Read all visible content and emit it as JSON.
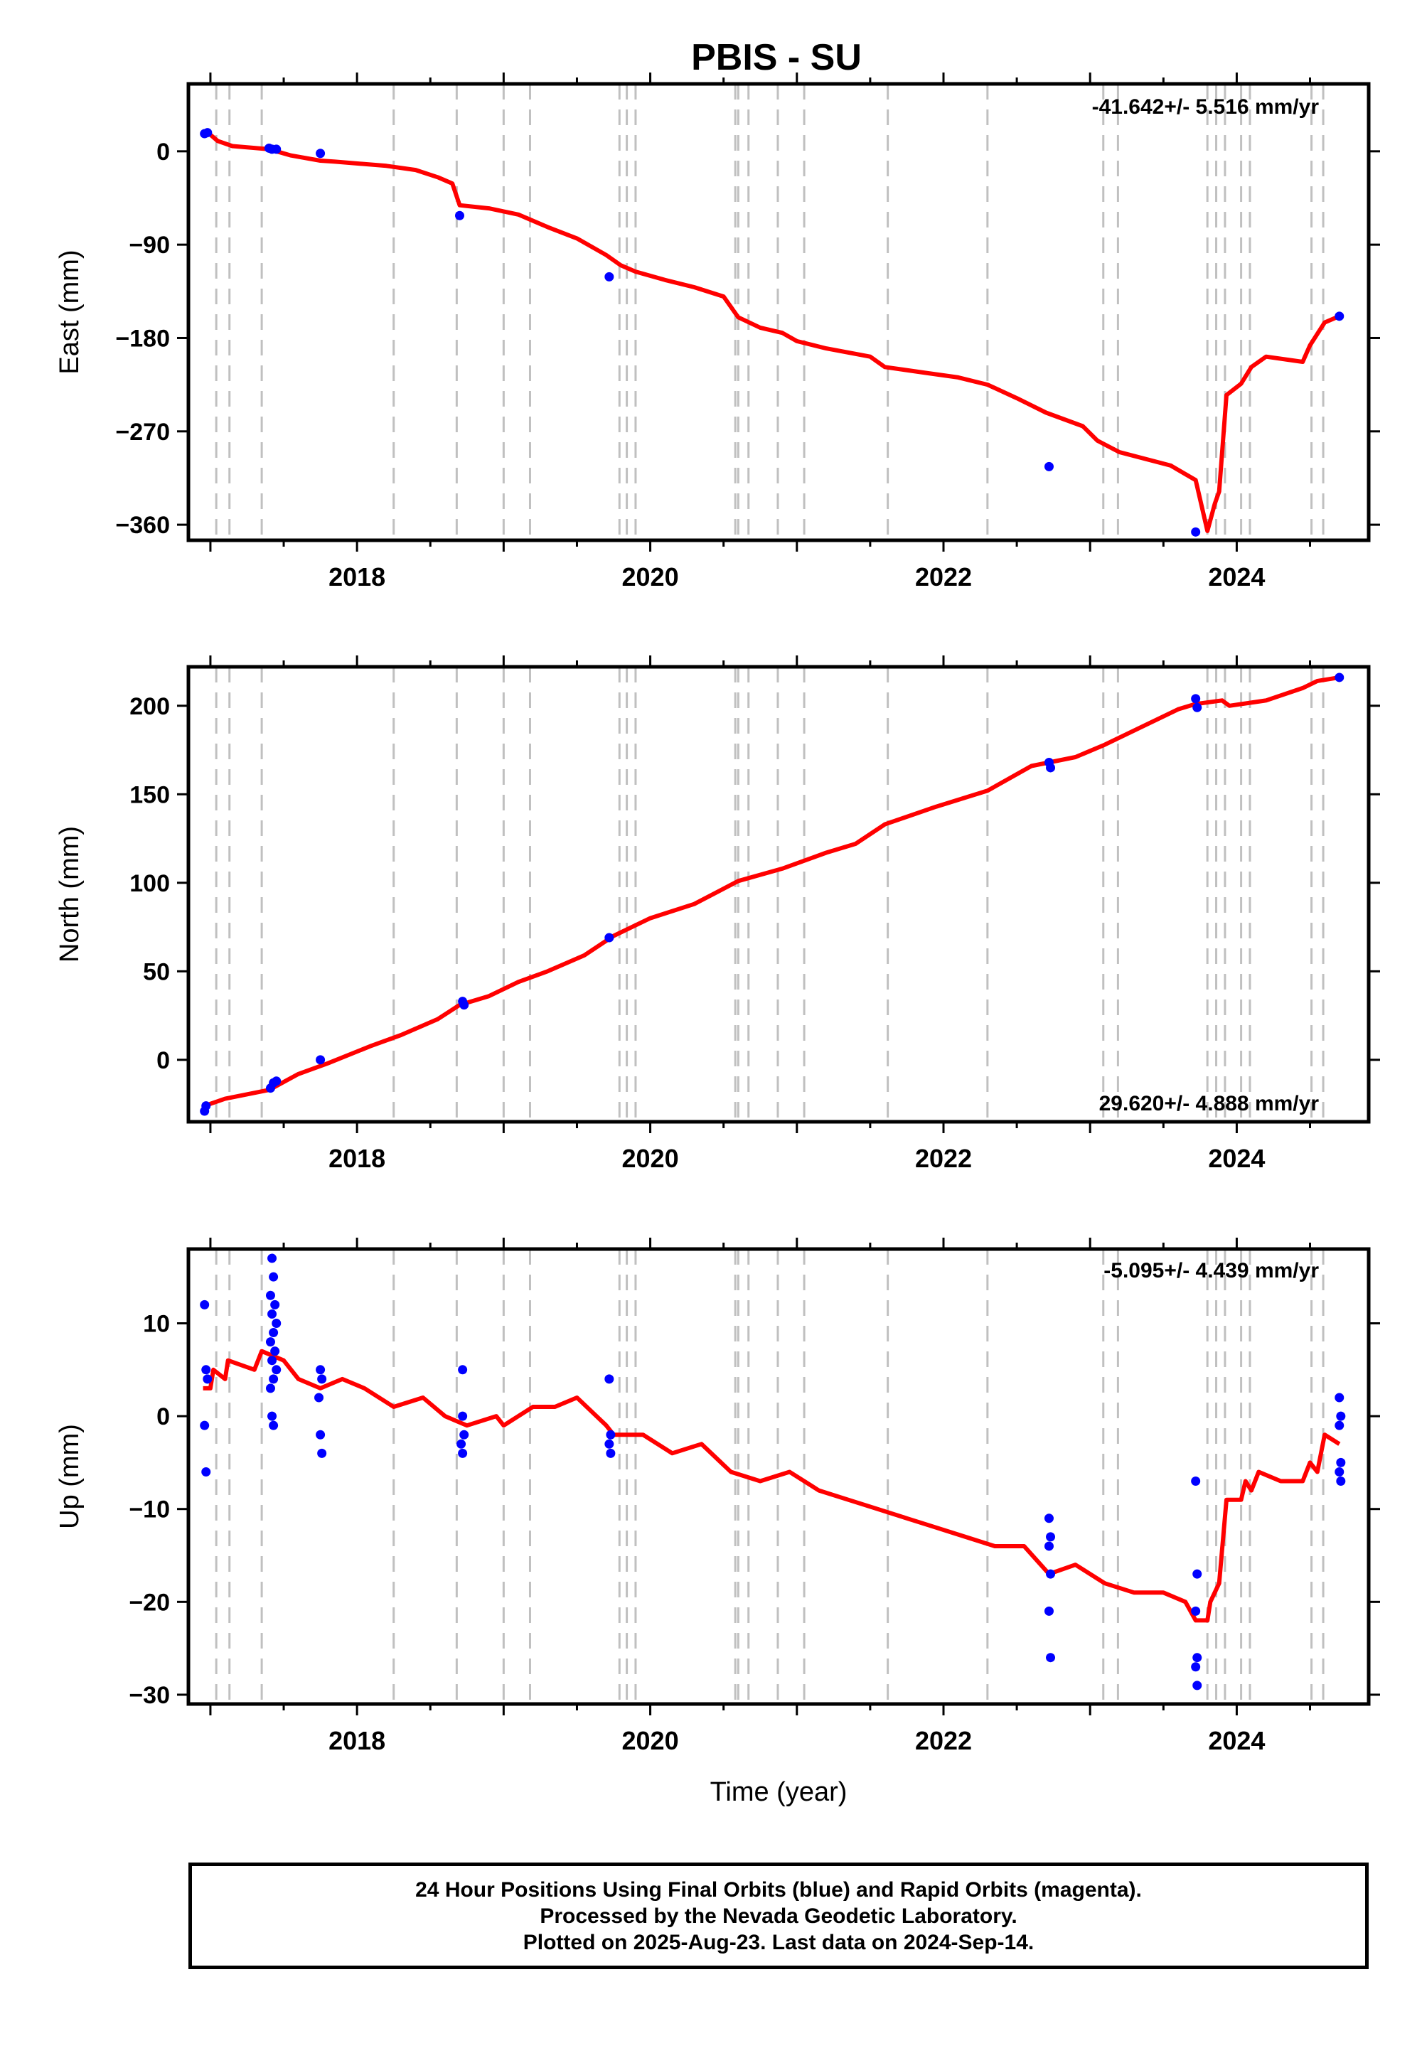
{
  "title": "PBIS - SU",
  "xlabel": "Time (year)",
  "x_ticks": [
    "2018",
    "2020",
    "2022",
    "2024"
  ],
  "footer": {
    "line1": "24 Hour Positions Using Final Orbits (blue) and Rapid Orbits (magenta).",
    "line2": "Processed by the Nevada Geodetic Laboratory.",
    "line3": "Plotted on 2025-Aug-23. Last data on 2024-Sep-14."
  },
  "colors": {
    "model": "#ff0000",
    "final_orbits": "#0000ff",
    "event_lines": "#c0c0c0"
  },
  "chart_data": [
    {
      "type": "scatter",
      "panel": "east",
      "ylabel": "East (mm)",
      "rate": "-41.642+/- 5.516 mm/yr",
      "xlim": [
        2016.85,
        2024.9
      ],
      "ylim": [
        -375,
        65
      ],
      "yticks": [
        0,
        -90,
        -180,
        -270,
        -360
      ],
      "grid": false,
      "series": [
        {
          "name": "Final Orbits",
          "color": "#0000ff",
          "points": [
            [
              2016.96,
              17
            ],
            [
              2016.98,
              18
            ],
            [
              2017.4,
              3
            ],
            [
              2017.42,
              2
            ],
            [
              2017.45,
              2
            ],
            [
              2017.75,
              -2
            ],
            [
              2018.7,
              -62
            ],
            [
              2019.72,
              -121
            ],
            [
              2022.72,
              -304
            ],
            [
              2023.72,
              -367
            ],
            [
              2024.7,
              -159
            ]
          ]
        }
      ],
      "model_line": [
        [
          2016.95,
          17
        ],
        [
          2017.0,
          16
        ],
        [
          2017.05,
          10
        ],
        [
          2017.15,
          5
        ],
        [
          2017.4,
          2
        ],
        [
          2017.45,
          0
        ],
        [
          2017.55,
          -4
        ],
        [
          2017.75,
          -9
        ],
        [
          2017.85,
          -10
        ],
        [
          2018.2,
          -14
        ],
        [
          2018.4,
          -18
        ],
        [
          2018.55,
          -25
        ],
        [
          2018.65,
          -31
        ],
        [
          2018.7,
          -52
        ],
        [
          2018.9,
          -55
        ],
        [
          2019.1,
          -61
        ],
        [
          2019.3,
          -73
        ],
        [
          2019.5,
          -84
        ],
        [
          2019.7,
          -100
        ],
        [
          2019.8,
          -110
        ],
        [
          2019.9,
          -116
        ],
        [
          2020.1,
          -124
        ],
        [
          2020.3,
          -131
        ],
        [
          2020.5,
          -140
        ],
        [
          2020.6,
          -160
        ],
        [
          2020.75,
          -170
        ],
        [
          2020.9,
          -175
        ],
        [
          2021.0,
          -183
        ],
        [
          2021.2,
          -190
        ],
        [
          2021.5,
          -198
        ],
        [
          2021.6,
          -208
        ],
        [
          2021.9,
          -214
        ],
        [
          2022.1,
          -218
        ],
        [
          2022.3,
          -225
        ],
        [
          2022.5,
          -238
        ],
        [
          2022.7,
          -252
        ],
        [
          2022.95,
          -265
        ],
        [
          2023.05,
          -279
        ],
        [
          2023.2,
          -290
        ],
        [
          2023.55,
          -303
        ],
        [
          2023.72,
          -317
        ],
        [
          2023.8,
          -366
        ],
        [
          2023.85,
          -340
        ],
        [
          2023.88,
          -328
        ],
        [
          2023.93,
          -235
        ],
        [
          2024.03,
          -224
        ],
        [
          2024.1,
          -208
        ],
        [
          2024.2,
          -198
        ],
        [
          2024.45,
          -203
        ],
        [
          2024.5,
          -187
        ],
        [
          2024.6,
          -165
        ],
        [
          2024.7,
          -159
        ]
      ]
    },
    {
      "type": "scatter",
      "panel": "north",
      "ylabel": "North (mm)",
      "rate": "29.620+/- 4.888 mm/yr",
      "xlim": [
        2016.85,
        2024.9
      ],
      "ylim": [
        -35,
        222
      ],
      "yticks": [
        0,
        50,
        100,
        150,
        200
      ],
      "grid": false,
      "series": [
        {
          "name": "Final Orbits",
          "color": "#0000ff",
          "points": [
            [
              2016.96,
              -29
            ],
            [
              2016.97,
              -26
            ],
            [
              2017.41,
              -16
            ],
            [
              2017.43,
              -13
            ],
            [
              2017.45,
              -12
            ],
            [
              2017.75,
              0
            ],
            [
              2018.72,
              33
            ],
            [
              2018.73,
              31
            ],
            [
              2019.72,
              69
            ],
            [
              2022.72,
              168
            ],
            [
              2022.73,
              165
            ],
            [
              2023.72,
              204
            ],
            [
              2023.73,
              199
            ],
            [
              2024.7,
              216
            ]
          ]
        }
      ],
      "model_line": [
        [
          2016.96,
          -26
        ],
        [
          2017.1,
          -22
        ],
        [
          2017.4,
          -17
        ],
        [
          2017.6,
          -8
        ],
        [
          2017.8,
          -2
        ],
        [
          2018.1,
          8
        ],
        [
          2018.3,
          14
        ],
        [
          2018.55,
          23
        ],
        [
          2018.7,
          31
        ],
        [
          2018.9,
          36
        ],
        [
          2019.1,
          44
        ],
        [
          2019.3,
          50
        ],
        [
          2019.55,
          59
        ],
        [
          2019.75,
          70
        ],
        [
          2020.0,
          80
        ],
        [
          2020.3,
          88
        ],
        [
          2020.6,
          101
        ],
        [
          2020.9,
          108
        ],
        [
          2021.2,
          117
        ],
        [
          2021.4,
          122
        ],
        [
          2021.6,
          133
        ],
        [
          2021.95,
          143
        ],
        [
          2022.3,
          152
        ],
        [
          2022.6,
          166
        ],
        [
          2022.9,
          171
        ],
        [
          2023.1,
          178
        ],
        [
          2023.4,
          190
        ],
        [
          2023.6,
          198
        ],
        [
          2023.72,
          201
        ],
        [
          2023.9,
          203
        ],
        [
          2023.95,
          200
        ],
        [
          2024.2,
          203
        ],
        [
          2024.45,
          210
        ],
        [
          2024.55,
          214
        ],
        [
          2024.7,
          216
        ]
      ]
    },
    {
      "type": "scatter",
      "panel": "up",
      "ylabel": "Up (mm)",
      "rate": "-5.095+/- 4.439 mm/yr",
      "xlim": [
        2016.85,
        2024.9
      ],
      "ylim": [
        -31,
        18
      ],
      "yticks": [
        10,
        0,
        -10,
        -20,
        -30
      ],
      "grid": false,
      "series": [
        {
          "name": "Final Orbits",
          "color": "#0000ff",
          "points": [
            [
              2016.96,
              12
            ],
            [
              2016.97,
              5
            ],
            [
              2016.98,
              4
            ],
            [
              2016.96,
              -1
            ],
            [
              2016.97,
              -6
            ],
            [
              2017.42,
              17
            ],
            [
              2017.43,
              15
            ],
            [
              2017.41,
              13
            ],
            [
              2017.44,
              12
            ],
            [
              2017.42,
              11
            ],
            [
              2017.45,
              10
            ],
            [
              2017.43,
              9
            ],
            [
              2017.41,
              8
            ],
            [
              2017.44,
              7
            ],
            [
              2017.42,
              6
            ],
            [
              2017.45,
              5
            ],
            [
              2017.43,
              4
            ],
            [
              2017.41,
              3
            ],
            [
              2017.42,
              0
            ],
            [
              2017.43,
              -1
            ],
            [
              2017.75,
              5
            ],
            [
              2017.76,
              4
            ],
            [
              2017.74,
              2
            ],
            [
              2017.75,
              -2
            ],
            [
              2017.76,
              -4
            ],
            [
              2018.72,
              5
            ],
            [
              2018.72,
              0
            ],
            [
              2018.73,
              -2
            ],
            [
              2018.71,
              -3
            ],
            [
              2018.72,
              -4
            ],
            [
              2019.72,
              4
            ],
            [
              2019.73,
              -2
            ],
            [
              2019.72,
              -3
            ],
            [
              2019.73,
              -4
            ],
            [
              2022.72,
              -11
            ],
            [
              2022.73,
              -13
            ],
            [
              2022.72,
              -14
            ],
            [
              2022.73,
              -17
            ],
            [
              2022.72,
              -21
            ],
            [
              2022.73,
              -26
            ],
            [
              2023.72,
              -7
            ],
            [
              2023.73,
              -17
            ],
            [
              2023.72,
              -21
            ],
            [
              2023.73,
              -26
            ],
            [
              2023.72,
              -27
            ],
            [
              2023.73,
              -29
            ],
            [
              2024.7,
              2
            ],
            [
              2024.71,
              0
            ],
            [
              2024.7,
              -1
            ],
            [
              2024.71,
              -5
            ],
            [
              2024.7,
              -6
            ],
            [
              2024.71,
              -7
            ]
          ]
        }
      ],
      "model_line": [
        [
          2016.95,
          3
        ],
        [
          2017.0,
          3
        ],
        [
          2017.02,
          5
        ],
        [
          2017.1,
          4
        ],
        [
          2017.12,
          6
        ],
        [
          2017.3,
          5
        ],
        [
          2017.35,
          7
        ],
        [
          2017.5,
          6
        ],
        [
          2017.6,
          4
        ],
        [
          2017.75,
          3
        ],
        [
          2017.9,
          4
        ],
        [
          2018.05,
          3
        ],
        [
          2018.25,
          1
        ],
        [
          2018.45,
          2
        ],
        [
          2018.6,
          0
        ],
        [
          2018.75,
          -1
        ],
        [
          2018.95,
          0
        ],
        [
          2019.0,
          -1
        ],
        [
          2019.2,
          1
        ],
        [
          2019.35,
          1
        ],
        [
          2019.5,
          2
        ],
        [
          2019.7,
          -1
        ],
        [
          2019.75,
          -2
        ],
        [
          2019.95,
          -2
        ],
        [
          2020.15,
          -4
        ],
        [
          2020.35,
          -3
        ],
        [
          2020.55,
          -6
        ],
        [
          2020.75,
          -7
        ],
        [
          2020.95,
          -6
        ],
        [
          2021.15,
          -8
        ],
        [
          2021.35,
          -9
        ],
        [
          2021.55,
          -10
        ],
        [
          2021.75,
          -11
        ],
        [
          2021.95,
          -12
        ],
        [
          2022.15,
          -13
        ],
        [
          2022.35,
          -14
        ],
        [
          2022.55,
          -14
        ],
        [
          2022.72,
          -17
        ],
        [
          2022.9,
          -16
        ],
        [
          2023.1,
          -18
        ],
        [
          2023.3,
          -19
        ],
        [
          2023.5,
          -19
        ],
        [
          2023.65,
          -20
        ],
        [
          2023.72,
          -22
        ],
        [
          2023.8,
          -22
        ],
        [
          2023.82,
          -20
        ],
        [
          2023.88,
          -18
        ],
        [
          2023.93,
          -9
        ],
        [
          2024.03,
          -9
        ],
        [
          2024.06,
          -7
        ],
        [
          2024.1,
          -8
        ],
        [
          2024.15,
          -6
        ],
        [
          2024.3,
          -7
        ],
        [
          2024.45,
          -7
        ],
        [
          2024.5,
          -5
        ],
        [
          2024.55,
          -6
        ],
        [
          2024.6,
          -2
        ],
        [
          2024.7,
          -3
        ]
      ]
    }
  ],
  "event_lines": [
    2017.04,
    2017.13,
    2017.35,
    2018.25,
    2018.68,
    2019.0,
    2019.18,
    2019.79,
    2019.84,
    2019.9,
    2020.58,
    2020.6,
    2020.67,
    2020.87,
    2021.05,
    2021.62,
    2022.3,
    2023.09,
    2023.19,
    2023.8,
    2023.86,
    2023.92,
    2024.03,
    2024.09,
    2024.51,
    2024.59
  ]
}
